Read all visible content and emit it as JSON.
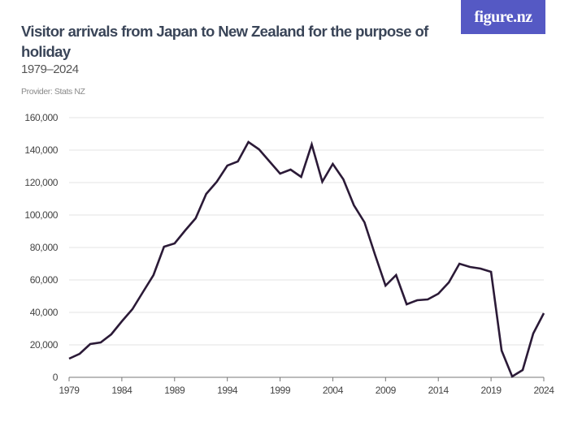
{
  "header": {
    "title": "Visitor arrivals from Japan to New Zealand for the purpose of holiday",
    "subtitle": "1979–2024",
    "provider": "Provider: Stats NZ",
    "logo": "figure.nz"
  },
  "colors": {
    "line": "#2b1a37",
    "grid": "#e3e3e3",
    "title": "#3a4558",
    "logo_bg": "#5559c4"
  },
  "chart_data": {
    "type": "line",
    "title": "Visitor arrivals from Japan to New Zealand for the purpose of holiday",
    "subtitle": "1979–2024",
    "xlabel": "",
    "ylabel": "",
    "xlim": [
      1979,
      2024
    ],
    "ylim": [
      0,
      160000
    ],
    "grid": true,
    "x_ticks": [
      "1979",
      "1984",
      "1989",
      "1994",
      "1999",
      "2004",
      "2009",
      "2014",
      "2019",
      "2024"
    ],
    "y_ticks": [
      "0",
      "20,000",
      "40,000",
      "60,000",
      "80,000",
      "100,000",
      "120,000",
      "140,000",
      "160,000"
    ],
    "x": [
      1979,
      1980,
      1981,
      1982,
      1983,
      1984,
      1985,
      1986,
      1987,
      1988,
      1989,
      1990,
      1991,
      1992,
      1993,
      1994,
      1995,
      1996,
      1997,
      1998,
      1999,
      2000,
      2001,
      2002,
      2003,
      2004,
      2005,
      2006,
      2007,
      2008,
      2009,
      2010,
      2011,
      2012,
      2013,
      2014,
      2015,
      2016,
      2017,
      2018,
      2019,
      2020,
      2021,
      2022,
      2023,
      2024
    ],
    "values": [
      11500,
      14500,
      20500,
      21500,
      26500,
      34500,
      42000,
      52500,
      63000,
      80500,
      82500,
      90500,
      98000,
      113000,
      120500,
      130500,
      133000,
      145000,
      140500,
      133000,
      125500,
      128000,
      123500,
      143500,
      120500,
      131500,
      122000,
      106000,
      95500,
      75500,
      56500,
      63000,
      45000,
      47500,
      48000,
      51500,
      58500,
      70000,
      68000,
      67000,
      65000,
      16500,
      500,
      4500,
      27000,
      39500
    ]
  }
}
